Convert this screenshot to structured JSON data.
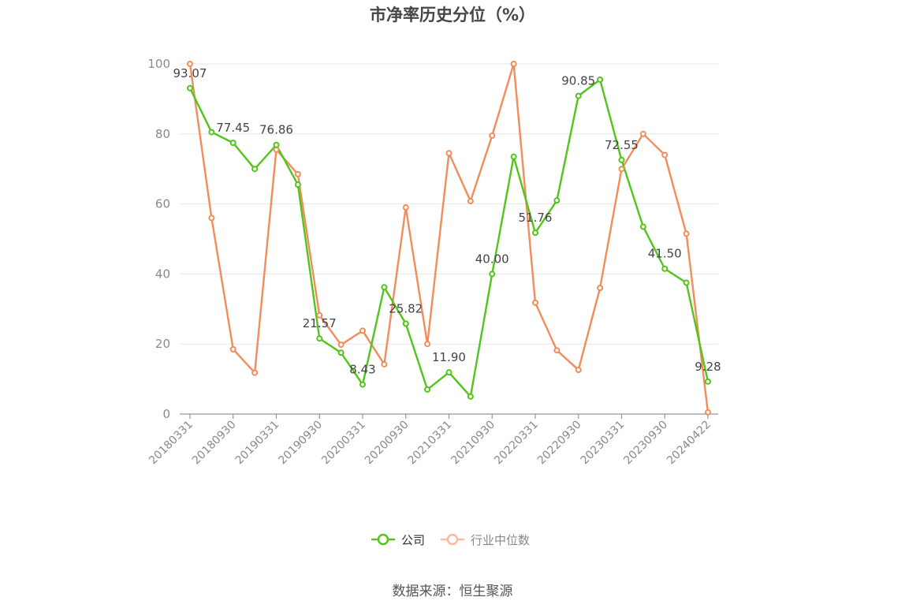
{
  "chart_data": {
    "type": "line",
    "title": "市净率历史分位（%）",
    "source": "数据来源：恒生聚源",
    "ylim": [
      0,
      100
    ],
    "yticks": [
      0,
      20,
      40,
      60,
      80,
      100
    ],
    "x": [
      "20180331",
      "20180630",
      "20180930",
      "20181231",
      "20190331",
      "20190630",
      "20190930",
      "20191231",
      "20200331",
      "20200630",
      "20200930",
      "20201231",
      "20210331",
      "20210630",
      "20210930",
      "20211231",
      "20220331",
      "20220630",
      "20220930",
      "20221231",
      "20230331",
      "20230630",
      "20230930",
      "20231231",
      "20240422"
    ],
    "xtick_labels": [
      "20180331",
      "20180930",
      "20190331",
      "20190930",
      "20200331",
      "20200930",
      "20210331",
      "20210930",
      "20220331",
      "20220930",
      "20230331",
      "20230930",
      "20240422"
    ],
    "grid": true,
    "legend_position": "bottom",
    "series": [
      {
        "name": "公司",
        "color": "#52c41a",
        "values": [
          93.07,
          80.5,
          77.45,
          70.0,
          76.86,
          65.5,
          21.57,
          17.5,
          8.43,
          36.2,
          25.82,
          7.0,
          11.9,
          5.0,
          40.0,
          73.5,
          51.76,
          61.0,
          90.85,
          95.5,
          72.55,
          53.5,
          41.5,
          37.5,
          9.28
        ],
        "labels": {
          "0": "93.07",
          "2": "77.45",
          "4": "76.86",
          "6": "21.57",
          "8": "8.43",
          "10": "25.82",
          "12": "11.90",
          "14": "40.00",
          "16": "51.76",
          "18": "90.85",
          "20": "72.55",
          "22": "41.50",
          "24": "9.28"
        }
      },
      {
        "name": "行业中位数",
        "color": "#f28c5a",
        "values": [
          100.0,
          56.0,
          18.5,
          11.8,
          75.5,
          68.5,
          28.2,
          19.8,
          23.8,
          14.2,
          59.0,
          20.0,
          74.5,
          60.8,
          79.5,
          100.0,
          31.8,
          18.2,
          12.6,
          36.0,
          70.0,
          80.0,
          74.0,
          51.5,
          0.5
        ]
      }
    ]
  }
}
